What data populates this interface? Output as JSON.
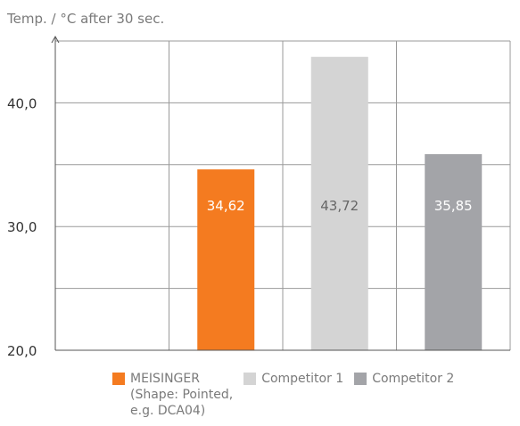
{
  "chart_data": {
    "type": "bar",
    "title": "Temp. / °C after 30 sec.",
    "xlabel": "",
    "ylabel": "",
    "ylim": [
      20,
      45
    ],
    "yticks": [
      20,
      30,
      40
    ],
    "ytick_labels": [
      "20,0",
      "30,0",
      "40,0"
    ],
    "grid": true,
    "legend_position": "bottom",
    "categories": [
      "MEISINGER (Shape: Pointed, e.g. DCA04)",
      "Competitor 1",
      "Competitor 2"
    ],
    "values": [
      34.62,
      43.72,
      35.85
    ],
    "value_labels": [
      "34,62",
      "43,72",
      "35,85"
    ],
    "colors": [
      "#f47b20",
      "#d4d4d4",
      "#a3a4a8"
    ],
    "value_label_colors": [
      "#ffffff",
      "#666666",
      "#ffffff"
    ]
  },
  "legend": [
    {
      "label": "MEISINGER\n(Shape: Pointed,\ne.g. DCA04)",
      "color": "#f47b20"
    },
    {
      "label": "Competitor 1",
      "color": "#d4d4d4"
    },
    {
      "label": "Competitor 2",
      "color": "#a3a4a8"
    }
  ],
  "colors": {
    "grid": "#9a9a9a",
    "axis": "#555555"
  }
}
